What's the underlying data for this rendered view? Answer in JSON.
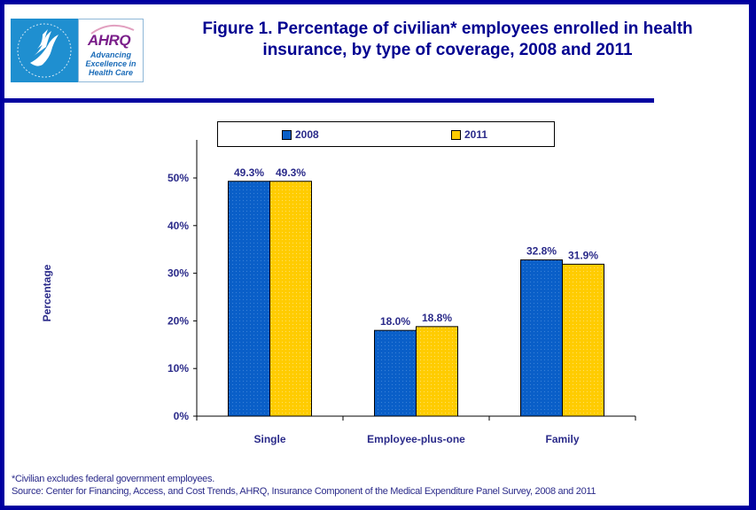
{
  "header": {
    "title_line1": "Figure 1. Percentage of civilian* employees enrolled in health",
    "title_line2": "insurance, by type of coverage, 2008 and 2011",
    "logo": {
      "hhs": "hhs-eagle-logo",
      "ahrq_mark": "AHRQ",
      "ahrq_tagline_1": "Advancing",
      "ahrq_tagline_2": "Excellence in",
      "ahrq_tagline_3": "Health Care"
    }
  },
  "colors": {
    "frame": "#0000a0",
    "series_2008": "#0a5fc8",
    "series_2011": "#ffcc00",
    "text": "#2b2b8a"
  },
  "chart_data": {
    "type": "bar",
    "title": "Figure 1. Percentage of civilian* employees enrolled in health insurance, by type of coverage, 2008 and 2011",
    "categories": [
      "Single",
      "Employee-plus-one",
      "Family"
    ],
    "series": [
      {
        "name": "2008",
        "values": [
          49.3,
          18.0,
          32.8
        ],
        "labels": [
          "49.3%",
          "18.0%",
          "32.8%"
        ]
      },
      {
        "name": "2011",
        "values": [
          49.3,
          18.8,
          31.9
        ],
        "labels": [
          "49.3%",
          "18.8%",
          "31.9%"
        ]
      }
    ],
    "xlabel": "",
    "ylabel": "Percentage",
    "ylim": [
      0,
      50
    ],
    "yticks": [
      0,
      10,
      20,
      30,
      40,
      50
    ],
    "ytick_labels": [
      "0%",
      "10%",
      "20%",
      "30%",
      "40%",
      "50%"
    ],
    "grid": false,
    "legend": {
      "position": "top",
      "entries": [
        "2008",
        "2011"
      ]
    }
  },
  "footer": {
    "note": "*Civilian excludes federal government employees.",
    "source": "Source: Center for Financing, Access, and Cost Trends, AHRQ,  Insurance Component of the Medical Expenditure Panel Survey,  2008 and 2011"
  }
}
